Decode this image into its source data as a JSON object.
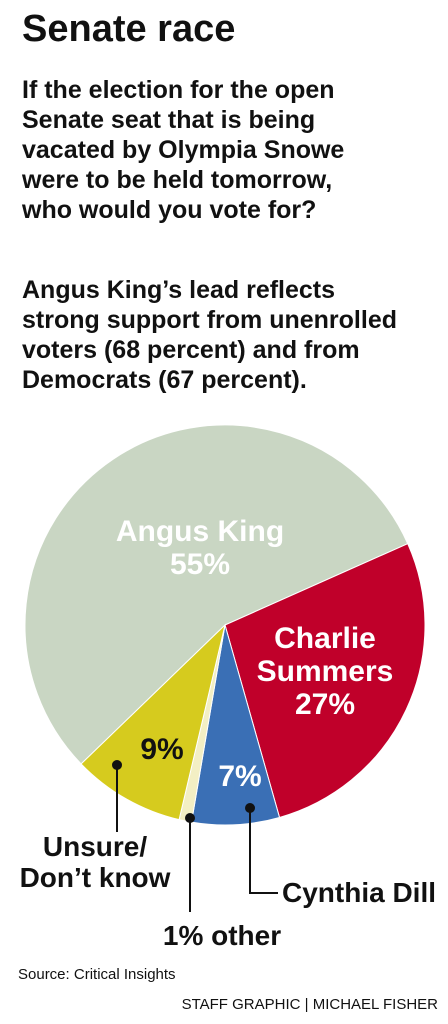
{
  "chart_data": {
    "type": "pie",
    "title": "Senate race",
    "question_lines": [
      "If the election for the open",
      "Senate seat that is being",
      "vacated by Olympia Snowe",
      "were to be held tomorrow,",
      "who would you vote for?"
    ],
    "note_lines": [
      "Angus King’s lead reflects",
      "strong support from unenrolled",
      "voters (68 percent) and from",
      "Democrats (67 percent)."
    ],
    "categories": [
      "Angus King",
      "Charlie Summers",
      "Cynthia Dill",
      "other",
      "Unsure/ Don’t know"
    ],
    "values": [
      55,
      27,
      7,
      1,
      9
    ],
    "value_labels": [
      "55%",
      "27%",
      "7%",
      "1%",
      "9%"
    ],
    "colors": [
      "#c9d6c3",
      "#c0002a",
      "#3a6fb5",
      "#f3efc4",
      "#d6cb1e"
    ],
    "source": "Source: Critical Insights",
    "credit": "STAFF GRAPHIC | MICHAEL FISHER"
  }
}
